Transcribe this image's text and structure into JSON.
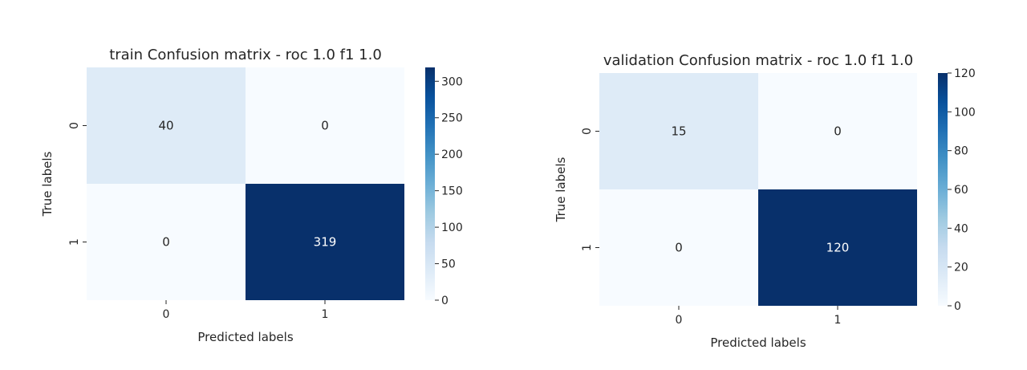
{
  "chart_data": [
    {
      "type": "heatmap",
      "title": "train Confusion matrix - roc 1.0 f1 1.0",
      "xlabel": "Predicted labels",
      "ylabel": "True labels",
      "x_categories": [
        "0",
        "1"
      ],
      "y_categories": [
        "0",
        "1"
      ],
      "values": [
        [
          40,
          0
        ],
        [
          0,
          319
        ]
      ],
      "colormap": "Blues",
      "colorbar": {
        "range": [
          0,
          319
        ],
        "ticks": [
          0,
          50,
          100,
          150,
          200,
          250,
          300
        ],
        "tick_labels": [
          "0",
          "50",
          "100",
          "150",
          "200",
          "250",
          "300"
        ]
      }
    },
    {
      "type": "heatmap",
      "title": "validation Confusion matrix - roc 1.0 f1 1.0",
      "xlabel": "Predicted labels",
      "ylabel": "True labels",
      "x_categories": [
        "0",
        "1"
      ],
      "y_categories": [
        "0",
        "1"
      ],
      "values": [
        [
          15,
          0
        ],
        [
          0,
          120
        ]
      ],
      "colormap": "Blues",
      "colorbar": {
        "range": [
          0,
          120
        ],
        "ticks": [
          0,
          20,
          40,
          60,
          80,
          100,
          120
        ],
        "tick_labels": [
          "0",
          "20",
          "40",
          "60",
          "80",
          "100",
          "120"
        ]
      }
    }
  ],
  "colors": {
    "blues_low": "#f7fbff",
    "blues_high": "#08306b",
    "text_dark": "#262626",
    "text_light": "#ffffff"
  }
}
